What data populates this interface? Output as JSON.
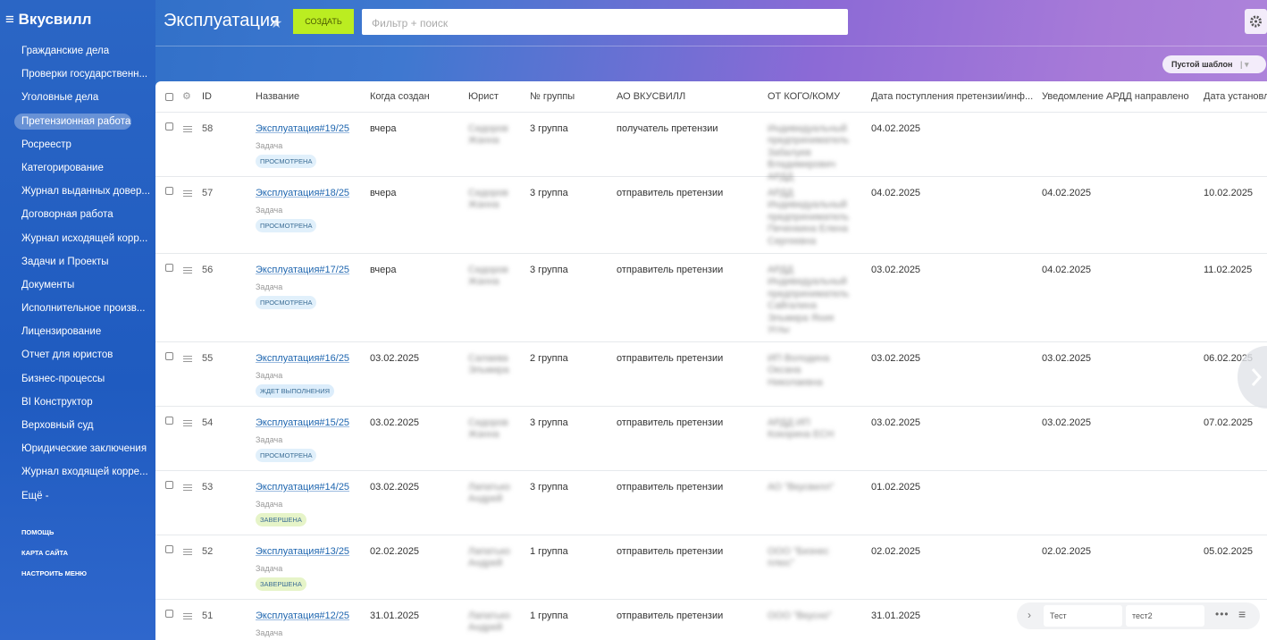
{
  "sidebar": {
    "logo": "Вкусвилл",
    "items": [
      "Гражданские дела",
      "Проверки государственн...",
      "Уголовные дела",
      "Претензионная работа",
      "Росреестр",
      "Категорирование",
      "Журнал выданных довер...",
      "Договорная работа",
      "Журнал исходящей корр...",
      "Задачи и Проекты",
      "Документы",
      "Исполнительное произв...",
      "Лицензирование",
      "Отчет для юристов",
      "Бизнес-процессы",
      "BI Конструктор",
      "Верховный суд",
      "Юридические заключения",
      "Журнал входящей корре...",
      "Ещё -"
    ],
    "active": 3,
    "footer": [
      "ПОМОЩЬ",
      "КАРТА САЙТА",
      "НАСТРОИТЬ МЕНЮ"
    ]
  },
  "header": {
    "title": "Эксплуатация",
    "create_button": "СОЗДАТЬ",
    "search_placeholder": "Фильтр + поиск",
    "template_button": "Пустой шаблон"
  },
  "table": {
    "columns": [
      "ID",
      "Название",
      "Когда создан",
      "Юрист",
      "№ группы",
      "АО ВКУСВИЛЛ",
      "ОТ КОГО/КОМУ",
      "Дата поступления претензии/инф...",
      "Уведомление АРДД направлено",
      "Дата установле"
    ],
    "rows": [
      {
        "id": "58",
        "name": "Эксплуатация#19/25",
        "kind": "Задача",
        "status": "ПРОСМОТРЕНА",
        "status_color": "#e1f0fb",
        "created": "вчера",
        "lawyer": "Сидоров Жанна",
        "group": "3 группа",
        "role": "получатель претензии",
        "from": "Индивидуальный предприниматель Забалуев Владимирович АРДД",
        "received": "04.02.2025",
        "notified": "",
        "set": ""
      },
      {
        "id": "57",
        "name": "Эксплуатация#18/25",
        "kind": "Задача",
        "status": "ПРОСМОТРЕНА",
        "status_color": "#e1f0fb",
        "created": "вчера",
        "lawyer": "Сидоров Жанна",
        "group": "3 группа",
        "role": "отправитель претензии",
        "from": "АРДД Индивидуальный предприниматель Печенкина Елена Сергеевна",
        "received": "04.02.2025",
        "notified": "04.02.2025",
        "set": "10.02.2025"
      },
      {
        "id": "56",
        "name": "Эксплуатация#17/25",
        "kind": "Задача",
        "status": "ПРОСМОТРЕНА",
        "status_color": "#e1f0fb",
        "created": "вчера",
        "lawyer": "Сидоров Жанна",
        "group": "3 группа",
        "role": "отправитель претензии",
        "from": "АРДД Индивидуальный предприниматель Сайгалина Эльмира Яхия Углы",
        "received": "03.02.2025",
        "notified": "04.02.2025",
        "set": "11.02.2025"
      },
      {
        "id": "55",
        "name": "Эксплуатация#16/25",
        "kind": "Задача",
        "status": "ЖДЕТ ВЫПОЛНЕНИЯ",
        "status_color": "#dcedfb",
        "created": "03.02.2025",
        "lawyer": "Салаева Эльмира",
        "group": "2 группа",
        "role": "отправитель претензии",
        "from": "ИП Володина Оксана Николаевна",
        "received": "03.02.2025",
        "notified": "03.02.2025",
        "set": "06.02.2025"
      },
      {
        "id": "54",
        "name": "Эксплуатация#15/25",
        "kind": "Задача",
        "status": "ПРОСМОТРЕНА",
        "status_color": "#e1f0fb",
        "created": "03.02.2025",
        "lawyer": "Сидоров Жанна",
        "group": "3 группа",
        "role": "отправитель претензии",
        "from": "АРДД ИП Кокорина ЕСН",
        "received": "03.02.2025",
        "notified": "03.02.2025",
        "set": "07.02.2025"
      },
      {
        "id": "53",
        "name": "Эксплуатация#14/25",
        "kind": "Задача",
        "status": "ЗАВЕРШЕНА",
        "status_color": "#e6f4c8",
        "created": "03.02.2025",
        "lawyer": "Лапатько Андрей",
        "group": "3 группа",
        "role": "отправитель претензии",
        "from": "АО \"Вкусвилл\"",
        "received": "01.02.2025",
        "notified": "",
        "set": ""
      },
      {
        "id": "52",
        "name": "Эксплуатация#13/25",
        "kind": "Задача",
        "status": "ЗАВЕРШЕНА",
        "status_color": "#e6f4c8",
        "created": "02.02.2025",
        "lawyer": "Лапатько Андрей",
        "group": "1 группа",
        "role": "отправитель претензии",
        "from": "ООО \"Бизнес плюс\"",
        "received": "02.02.2025",
        "notified": "02.02.2025",
        "set": "05.02.2025"
      },
      {
        "id": "51",
        "name": "Эксплуатация#12/25",
        "kind": "Задача",
        "status": "",
        "status_color": "#e1f0fb",
        "created": "31.01.2025",
        "lawyer": "Лапатько Андрей",
        "group": "1 группа",
        "role": "отправитель претензии",
        "from": "ООО \"Вкусно\"",
        "received": "31.01.2025",
        "notified": "",
        "set": ""
      }
    ]
  },
  "bottom_bar": {
    "fields": [
      "Тест",
      "тест2"
    ]
  }
}
